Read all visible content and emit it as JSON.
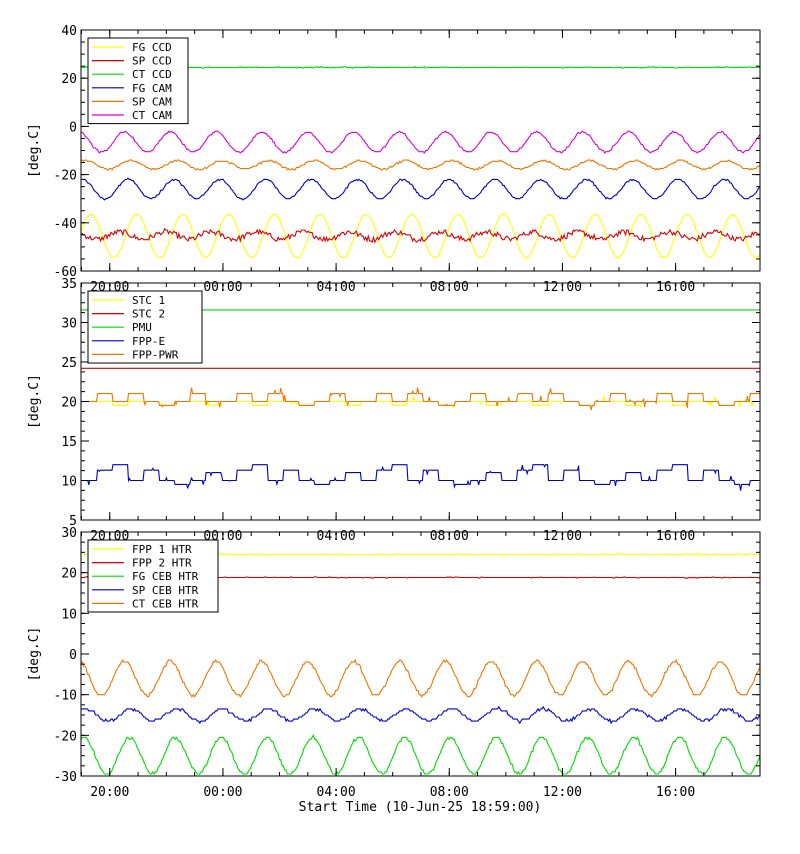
{
  "chart_data": {
    "type": "line",
    "x_axis": {
      "tick_labels": [
        "20:00",
        "00:00",
        "04:00",
        "08:00",
        "12:00",
        "16:00"
      ],
      "tick_hours": [
        1.0167,
        5.0167,
        9.0167,
        13.0167,
        17.0167,
        21.0167
      ],
      "range_hours": [
        0,
        24
      ],
      "title": "Start Time (10-Jun-25 18:59:00)"
    },
    "panels": [
      {
        "ylabel": "[deg.C]",
        "ylim": [
          -60,
          40
        ],
        "yticks": [
          40,
          20,
          0,
          -20,
          -40,
          -60
        ],
        "legend": "top-left",
        "series": [
          {
            "name": "FG CCD",
            "color": "#ffff00",
            "kind": "sine",
            "mean": -45.5,
            "amp": 9,
            "period_h": 1.62,
            "phase": 0.2
          },
          {
            "name": "SP CCD",
            "color": "#dd0000",
            "kind": "noisy",
            "mean": -45.3,
            "amp": 1.5,
            "period_h": 1.62,
            "phase": 2.5
          },
          {
            "name": "CT CCD",
            "color": "#00dd00",
            "kind": "flat",
            "mean": 24.5,
            "amp": 0.4
          },
          {
            "name": "FG CAM",
            "color": "#0000cc",
            "kind": "sine",
            "mean": -26,
            "amp": 4,
            "period_h": 1.62,
            "phase": 1.4
          },
          {
            "name": "SP CAM",
            "color": "#ee7700",
            "kind": "sine",
            "mean": -16,
            "amp": 1.8,
            "period_h": 1.62,
            "phase": 1.0
          },
          {
            "name": "CT CAM",
            "color": "#dd00dd",
            "kind": "sine",
            "mean": -6.5,
            "amp": 4.2,
            "period_h": 1.62,
            "phase": 1.9
          }
        ]
      },
      {
        "ylabel": "[deg.C]",
        "ylim": [
          5,
          35
        ],
        "yticks": [
          35,
          30,
          25,
          20,
          15,
          10,
          5
        ],
        "legend": "top-left",
        "series": [
          {
            "name": "STC 1",
            "color": "#ffff00",
            "kind": "step",
            "levels": [
              20,
              20,
              19.5,
              20,
              20,
              19.5,
              20,
              20,
              19.5
            ]
          },
          {
            "name": "STC 2",
            "color": "#dd0000",
            "kind": "flat",
            "mean": 24.2,
            "amp": 0
          },
          {
            "name": "PMU",
            "color": "#00dd00",
            "kind": "flat",
            "mean": 31.6,
            "amp": 0
          },
          {
            "name": "FPP-E",
            "color": "#0000cc",
            "kind": "step",
            "levels": [
              10,
              11.3,
              12,
              10,
              11.3,
              10,
              9.5,
              10,
              11
            ]
          },
          {
            "name": "FPP-PWR",
            "color": "#ee7700",
            "kind": "step",
            "levels": [
              20,
              21,
              20,
              21,
              20,
              19.5,
              20,
              21,
              20
            ]
          }
        ]
      },
      {
        "ylabel": "[deg.C]",
        "ylim": [
          -30,
          30
        ],
        "yticks": [
          30,
          20,
          10,
          0,
          -10,
          -20,
          -30
        ],
        "legend": "top-left",
        "series": [
          {
            "name": "FPP 1 HTR",
            "color": "#ffff00",
            "kind": "flat",
            "mean": 24.5,
            "amp": 0.3
          },
          {
            "name": "FPP 2 HTR",
            "color": "#dd0000",
            "kind": "flat",
            "mean": 18.8,
            "amp": 0.2
          },
          {
            "name": "FG CEB HTR",
            "color": "#00dd00",
            "kind": "sine",
            "mean": -25,
            "amp": 4.5,
            "period_h": 1.62,
            "phase": 1.2
          },
          {
            "name": "SP CEB HTR",
            "color": "#0000cc",
            "kind": "sine",
            "mean": -15,
            "amp": 1.5,
            "period_h": 1.62,
            "phase": 1.0
          },
          {
            "name": "CT CEB HTR",
            "color": "#ee7700",
            "kind": "sine",
            "mean": -6,
            "amp": 4.2,
            "period_h": 1.62,
            "phase": 1.9
          }
        ]
      }
    ]
  }
}
